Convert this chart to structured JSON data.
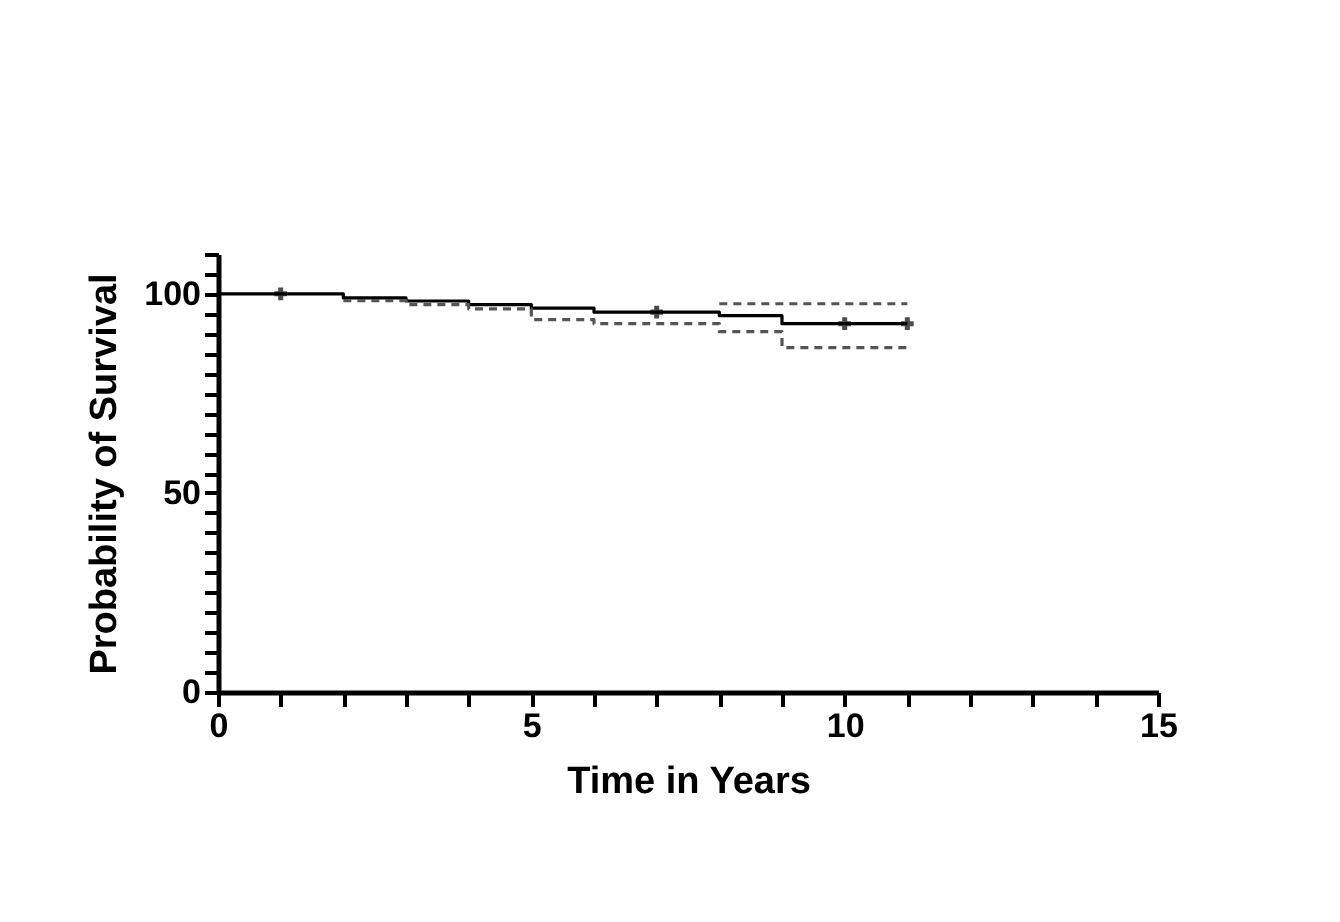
{
  "chart_data": {
    "type": "step",
    "xlabel": "Time in Years",
    "ylabel": "Probability of Survival",
    "xlim": [
      0,
      15
    ],
    "ylim": [
      0,
      110
    ],
    "xticks": [
      0,
      {
        "value": 1,
        "label": null
      },
      {
        "value": 2,
        "label": null
      },
      {
        "value": 3,
        "label": null
      },
      {
        "value": 4,
        "label": null
      },
      5,
      {
        "value": 6,
        "label": null
      },
      {
        "value": 7,
        "label": null
      },
      {
        "value": 8,
        "label": null
      },
      {
        "value": 9,
        "label": null
      },
      10,
      {
        "value": 11,
        "label": null
      },
      {
        "value": 12,
        "label": null
      },
      {
        "value": 13,
        "label": null
      },
      {
        "value": 14,
        "label": null
      },
      15
    ],
    "yticks": [
      0,
      {
        "value": 5,
        "label": null
      },
      {
        "value": 10,
        "label": null
      },
      {
        "value": 15,
        "label": null
      },
      {
        "value": 20,
        "label": null
      },
      {
        "value": 25,
        "label": null
      },
      {
        "value": 30,
        "label": null
      },
      {
        "value": 35,
        "label": null
      },
      {
        "value": 40,
        "label": null
      },
      {
        "value": 45,
        "label": null
      },
      50,
      {
        "value": 55,
        "label": null
      },
      {
        "value": 60,
        "label": null
      },
      {
        "value": 65,
        "label": null
      },
      {
        "value": 70,
        "label": null
      },
      {
        "value": 75,
        "label": null
      },
      {
        "value": 80,
        "label": null
      },
      {
        "value": 85,
        "label": null
      },
      {
        "value": 90,
        "label": null
      },
      {
        "value": 95,
        "label": null
      },
      100,
      {
        "value": 105,
        "label": null
      },
      {
        "value": 110,
        "label": null
      }
    ],
    "grid": false,
    "series": [
      {
        "color": "#000000",
        "line_style": "solid",
        "x": [
          0,
          2,
          3,
          4,
          5,
          6,
          8,
          9,
          11
        ],
        "values": [
          100,
          99,
          98.2,
          97.3,
          96.4,
          95.4,
          94.5,
          92.5,
          92.5
        ]
      },
      {
        "type": "step",
        "color": "#555555",
        "line_style": "dashed",
        "x": [
          2,
          3,
          4,
          5,
          6,
          8,
          9,
          11
        ],
        "values": [
          98.3,
          97.3,
          96.2,
          93.5,
          92.5,
          90.5,
          86.5,
          86.5
        ]
      },
      {
        "type": "step",
        "color": "#555555",
        "line_style": "dashed",
        "x": [
          8,
          11
        ],
        "values": [
          97.5,
          97.5
        ]
      },
      {
        "type": "scatter",
        "color": "#000000",
        "marker": "cross",
        "x": [
          1,
          7,
          10,
          11
        ],
        "values": [
          100,
          95.4,
          92.5,
          92.5
        ]
      }
    ]
  }
}
